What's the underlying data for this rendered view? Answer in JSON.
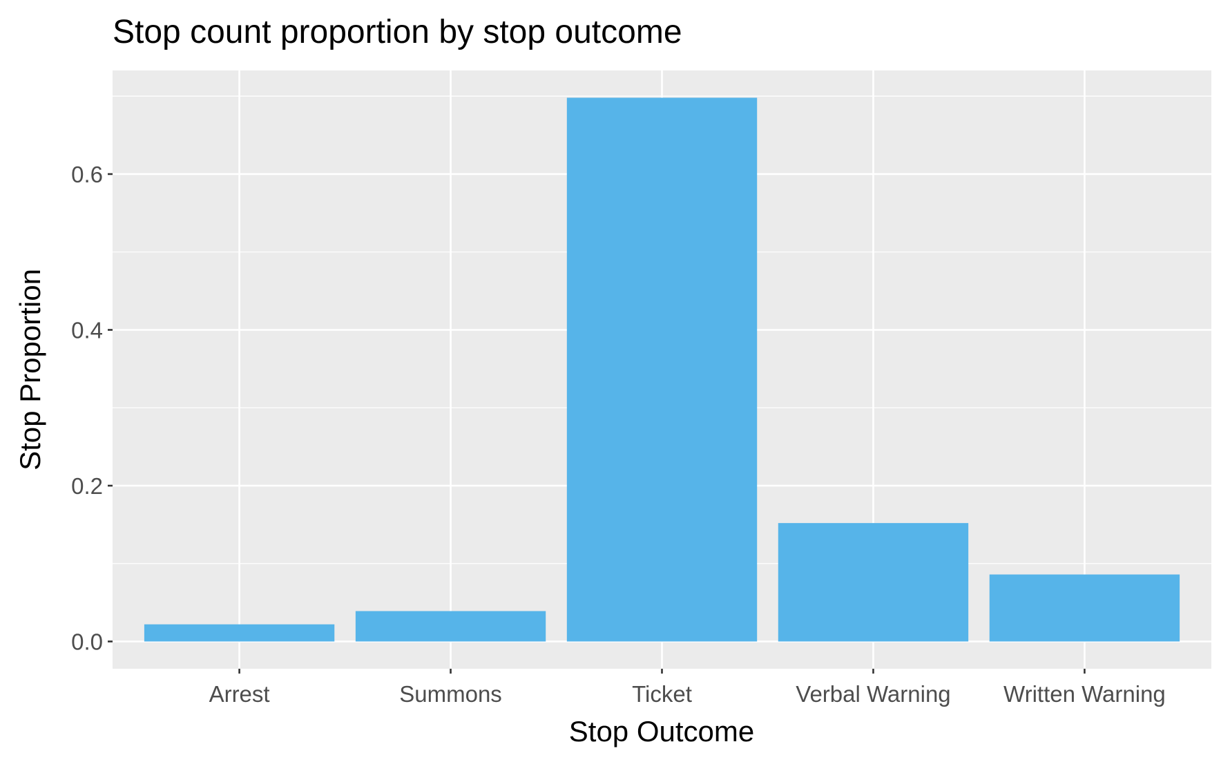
{
  "chart_data": {
    "type": "bar",
    "title": "Stop count proportion by stop outcome",
    "xlabel": "Stop Outcome",
    "ylabel": "Stop Proportion",
    "categories": [
      "Arrest",
      "Summons",
      "Ticket",
      "Verbal Warning",
      "Written Warning"
    ],
    "values": [
      0.022,
      0.039,
      0.698,
      0.152,
      0.086
    ],
    "ylim": [
      -0.035,
      0.733
    ],
    "yticks": [
      0.0,
      0.2,
      0.4,
      0.6
    ],
    "ytick_labels": [
      "0.0",
      "0.2",
      "0.4",
      "0.6"
    ],
    "grid": true,
    "bar_color": "#56B4E9",
    "panel_background": "#EBEBEB",
    "grid_color": "#FFFFFF"
  }
}
